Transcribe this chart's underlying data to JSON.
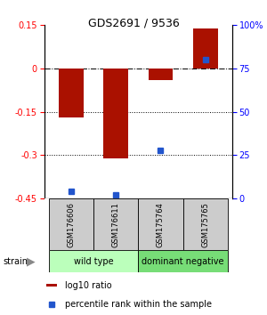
{
  "title": "GDS2691 / 9536",
  "samples": [
    "GSM176606",
    "GSM176611",
    "GSM175764",
    "GSM175765"
  ],
  "log10_ratio": [
    -0.17,
    -0.31,
    -0.04,
    0.14
  ],
  "percentile_rank": [
    4,
    2,
    28,
    80
  ],
  "ylim_left": [
    -0.45,
    0.15
  ],
  "ylim_right": [
    0,
    100
  ],
  "yticks_left": [
    0.15,
    0,
    -0.15,
    -0.3,
    -0.45
  ],
  "yticks_right": [
    100,
    75,
    50,
    25,
    0
  ],
  "hlines_dotted": [
    -0.15,
    -0.3
  ],
  "hline_dashdot": 0,
  "bar_color": "#aa1100",
  "square_color": "#2255cc",
  "group1_label": "wild type",
  "group2_label": "dominant negative",
  "group1_color": "#bbffbb",
  "group2_color": "#77dd77",
  "strain_label": "strain",
  "legend_bar_label": "log10 ratio",
  "legend_sq_label": "percentile rank within the sample",
  "bar_width": 0.55,
  "sample_box_color": "#cccccc",
  "title_fontsize": 9,
  "tick_fontsize": 7,
  "label_fontsize": 6,
  "group_fontsize": 7,
  "legend_fontsize": 7
}
